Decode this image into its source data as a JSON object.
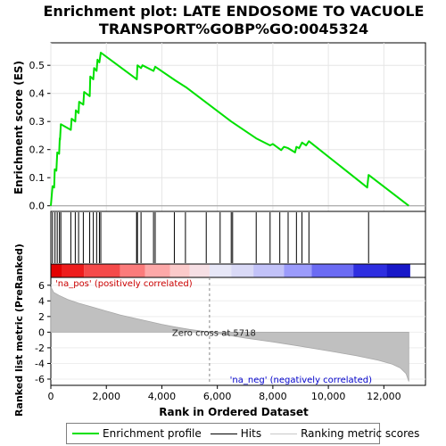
{
  "chart_data": {
    "type": "line",
    "title": "Enrichment plot: LATE ENDOSOME TO VACUOLE TRANSPORT%GOBP%GO:0045324",
    "title_lines": [
      "Enrichment plot: LATE ENDOSOME TO VACUOLE",
      "TRANSPORT%GOBP%GO:0045324"
    ],
    "xlabel": "Rank in Ordered Dataset",
    "xlim": [
      0,
      13500
    ],
    "xticks": [
      0,
      2000,
      4000,
      6000,
      8000,
      10000,
      12000
    ],
    "xtick_labels": [
      "0",
      "2,000",
      "4,000",
      "6,000",
      "8,000",
      "10,000",
      "12,000"
    ],
    "es_panel": {
      "ylabel": "Enrichment score (ES)",
      "ylim": [
        -0.02,
        0.58
      ],
      "yticks": [
        0.0,
        0.1,
        0.2,
        0.3,
        0.4,
        0.5
      ],
      "ytick_labels": [
        "0.0",
        "0.1",
        "0.2",
        "0.3",
        "0.4",
        "0.5"
      ],
      "series_name": "Enrichment profile",
      "color": "#00e000",
      "points": [
        [
          0,
          0.0
        ],
        [
          60,
          0.07
        ],
        [
          120,
          0.065
        ],
        [
          140,
          0.13
        ],
        [
          200,
          0.125
        ],
        [
          230,
          0.19
        ],
        [
          300,
          0.185
        ],
        [
          320,
          0.24
        ],
        [
          330,
          0.235
        ],
        [
          360,
          0.29
        ],
        [
          720,
          0.27
        ],
        [
          750,
          0.31
        ],
        [
          880,
          0.3
        ],
        [
          900,
          0.34
        ],
        [
          1000,
          0.33
        ],
        [
          1020,
          0.37
        ],
        [
          1170,
          0.36
        ],
        [
          1200,
          0.405
        ],
        [
          1400,
          0.39
        ],
        [
          1420,
          0.46
        ],
        [
          1530,
          0.45
        ],
        [
          1560,
          0.49
        ],
        [
          1650,
          0.48
        ],
        [
          1680,
          0.52
        ],
        [
          1750,
          0.51
        ],
        [
          1800,
          0.545
        ],
        [
          3100,
          0.45
        ],
        [
          3120,
          0.5
        ],
        [
          3250,
          0.49
        ],
        [
          3300,
          0.5
        ],
        [
          3700,
          0.48
        ],
        [
          3760,
          0.495
        ],
        [
          4500,
          0.445
        ],
        [
          4900,
          0.42
        ],
        [
          6500,
          0.3
        ],
        [
          7400,
          0.24
        ],
        [
          7900,
          0.215
        ],
        [
          8000,
          0.22
        ],
        [
          8300,
          0.198
        ],
        [
          8400,
          0.21
        ],
        [
          8550,
          0.205
        ],
        [
          8800,
          0.19
        ],
        [
          8850,
          0.21
        ],
        [
          8950,
          0.205
        ],
        [
          9050,
          0.225
        ],
        [
          9200,
          0.215
        ],
        [
          9300,
          0.23
        ],
        [
          11400,
          0.065
        ],
        [
          11450,
          0.11
        ],
        [
          12900,
          0.0
        ]
      ]
    },
    "hits_panel": {
      "series_name": "Hits",
      "hit_ranks": [
        60,
        150,
        230,
        310,
        360,
        720,
        880,
        1000,
        1170,
        1400,
        1530,
        1650,
        1750,
        1800,
        3090,
        3120,
        3250,
        3700,
        3760,
        4450,
        4850,
        5600,
        6100,
        6500,
        6550,
        7400,
        7900,
        8250,
        8550,
        8850,
        9050,
        9300,
        11450
      ]
    },
    "heatmap_bar": {
      "description_colors": [
        "#e80000",
        "#ff9a9a",
        "#f5d5d5",
        "#dcdcf5",
        "#8c8cff",
        "#1c1ce0"
      ],
      "bands": [
        {
          "from": 0,
          "to": 400,
          "color": "#e20000"
        },
        {
          "from": 400,
          "to": 1200,
          "color": "#ee1c1c"
        },
        {
          "from": 1200,
          "to": 2500,
          "color": "#f54a4a"
        },
        {
          "from": 2500,
          "to": 3400,
          "color": "#fb7b7b"
        },
        {
          "from": 3400,
          "to": 4300,
          "color": "#fda8a8"
        },
        {
          "from": 4300,
          "to": 5000,
          "color": "#fbcaca"
        },
        {
          "from": 5000,
          "to": 5718,
          "color": "#f6dfe4"
        },
        {
          "from": 5718,
          "to": 6500,
          "color": "#e7e7f7"
        },
        {
          "from": 6500,
          "to": 7300,
          "color": "#d9d9f6"
        },
        {
          "from": 7300,
          "to": 8400,
          "color": "#c2c2f8"
        },
        {
          "from": 8400,
          "to": 9400,
          "color": "#9b9bfb"
        },
        {
          "from": 9400,
          "to": 10900,
          "color": "#6b6bf3"
        },
        {
          "from": 10900,
          "to": 12100,
          "color": "#2e2ee0"
        },
        {
          "from": 12100,
          "to": 12950,
          "color": "#1818c8"
        }
      ]
    },
    "rank_panel": {
      "ylabel": "Ranked list metric (PreRanked)",
      "ylim": [
        -6.8,
        7.0
      ],
      "yticks": [
        -6,
        -4,
        -2,
        0,
        2,
        4,
        6
      ],
      "ytick_labels": [
        "-6",
        "-4",
        "-2",
        "0",
        "2",
        "4",
        "6"
      ],
      "series_name": "Ranking metric scores",
      "color": "#c0c0c0",
      "points": [
        [
          0,
          5.8
        ],
        [
          100,
          5.1
        ],
        [
          300,
          4.7
        ],
        [
          600,
          4.2
        ],
        [
          1000,
          3.7
        ],
        [
          1500,
          3.2
        ],
        [
          2000,
          2.7
        ],
        [
          2500,
          2.2
        ],
        [
          3000,
          1.8
        ],
        [
          3500,
          1.4
        ],
        [
          4000,
          1.0
        ],
        [
          4500,
          0.65
        ],
        [
          5000,
          0.35
        ],
        [
          5718,
          0.0
        ],
        [
          6500,
          -0.45
        ],
        [
          7000,
          -0.75
        ],
        [
          8000,
          -1.25
        ],
        [
          9000,
          -1.8
        ],
        [
          10000,
          -2.4
        ],
        [
          11000,
          -3.0
        ],
        [
          11800,
          -3.6
        ],
        [
          12300,
          -4.1
        ],
        [
          12600,
          -4.6
        ],
        [
          12800,
          -5.3
        ],
        [
          12900,
          -6.3
        ]
      ],
      "zero_cross_rank": 5718,
      "zero_cross_label": "Zero cross at 5718",
      "pos_label": "'na_pos' (positively correlated)",
      "neg_label": "'na_neg' (negatively correlated)",
      "pos_color": "#cc0000",
      "neg_color": "#0000cc"
    },
    "legend": {
      "placement": "bottom",
      "entries": [
        "Enrichment profile",
        "Hits",
        "Ranking metric scores"
      ]
    }
  }
}
